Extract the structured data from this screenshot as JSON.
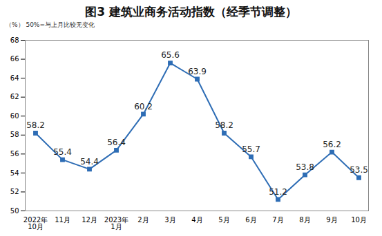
{
  "chart_data": {
    "type": "line",
    "title": "图3 建筑业商务活动指数（经季节调整）",
    "subtitle": "（%） 50%=与上月比较无变化",
    "categories": [
      "2022年\n10月",
      "11月",
      "12月",
      "2023年\n1月",
      "2月",
      "3月",
      "4月",
      "5月",
      "6月",
      "7月",
      "8月",
      "9月",
      "10月"
    ],
    "values": [
      58.2,
      55.4,
      54.4,
      56.4,
      60.2,
      65.6,
      63.9,
      58.2,
      55.7,
      51.2,
      53.8,
      56.2,
      53.5
    ],
    "color": "#2e6db5",
    "marker": "square",
    "ylim": [
      50,
      68
    ],
    "yticks": [
      50,
      52,
      54,
      56,
      58,
      60,
      62,
      64,
      66,
      68
    ],
    "grid": false,
    "data_labels": true
  }
}
